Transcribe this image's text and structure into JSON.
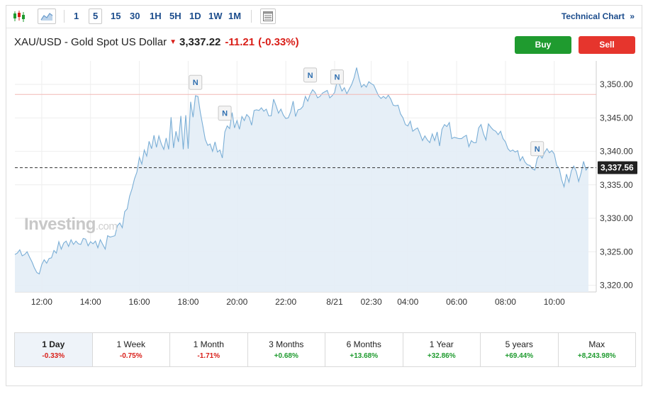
{
  "toolbar": {
    "chart_type_icons": [
      "candlestick-icon",
      "area-chart-icon"
    ],
    "timeframes": [
      "1",
      "5",
      "15",
      "30",
      "1H",
      "5H",
      "1D",
      "1W",
      "1M"
    ],
    "active_timeframe": "5",
    "layout_icon": "table-layout-icon",
    "technical_chart_label": "Technical Chart",
    "technical_chart_arrow": "»"
  },
  "quote": {
    "symbol_name": "XAU/USD - Gold Spot US Dollar",
    "direction_icon": "down-arrow-icon",
    "price": "3,337.22",
    "change": "-11.21",
    "change_pct": "(-0.33%)"
  },
  "actions": {
    "buy_label": "Buy",
    "sell_label": "Sell"
  },
  "watermark": {
    "brand": "Investing",
    "suffix": ".com"
  },
  "colors": {
    "line": "#7aaed6",
    "area": "#e3edf6",
    "down": "#d91e18",
    "up": "#1f9b2f",
    "buy": "#1f9b2f",
    "sell": "#e6352d",
    "link": "#1b4c8c"
  },
  "chart_data": {
    "type": "area",
    "y_ticks": [
      "3,320.00",
      "3,325.00",
      "3,330.00",
      "3,335.00",
      "3,340.00",
      "3,345.00",
      "3,350.00"
    ],
    "x_tick_labels": [
      "12:00",
      "14:00",
      "16:00",
      "18:00",
      "20:00",
      "22:00",
      "8/21",
      "02:30",
      "04:00",
      "06:00",
      "08:00",
      "10:00"
    ],
    "ylim": [
      3319,
      3353.5
    ],
    "last_price_label": "3,337.56",
    "last_price": 3337.56,
    "reference_line": 3348.5,
    "news_marker_label": "N",
    "news_markers": [
      {
        "label": "N",
        "i": 74,
        "y": 3350.3
      },
      {
        "label": "N",
        "i": 86,
        "y": 3345.7
      },
      {
        "label": "N",
        "i": 121,
        "y": 3351.4
      },
      {
        "label": "N",
        "i": 132,
        "y": 3351.1
      },
      {
        "label": "N",
        "i": 214,
        "y": 3340.4
      }
    ],
    "x_ticks_index": [
      11,
      31,
      51,
      71,
      91,
      111,
      131,
      146,
      161,
      181,
      201,
      221
    ],
    "grid": true,
    "values": [
      3324.6,
      3324.8,
      3325.3,
      3324.4,
      3324.6,
      3325.0,
      3324.2,
      3323.5,
      3322.6,
      3321.9,
      3321.7,
      3323.1,
      3323.8,
      3323.3,
      3324.0,
      3324.1,
      3325.2,
      3324.8,
      3326.5,
      3325.4,
      3326.3,
      3326.6,
      3325.8,
      3326.8,
      3326.1,
      3326.6,
      3326.2,
      3326.1,
      3327.0,
      3326.9,
      3325.9,
      3326.5,
      3326.2,
      3326.6,
      3325.6,
      3326.8,
      3326.1,
      3325.4,
      3327.4,
      3327.2,
      3327.3,
      3327.4,
      3328.9,
      3329.3,
      3328.6,
      3331.0,
      3331.4,
      3333.3,
      3334.4,
      3335.9,
      3336.9,
      3339.1,
      3338.1,
      3340.2,
      3339.3,
      3341.5,
      3340.4,
      3342.4,
      3340.6,
      3342.3,
      3341.1,
      3340.3,
      3342.0,
      3340.3,
      3345.1,
      3340.5,
      3343.0,
      3341.4,
      3345.3,
      3340.3,
      3345.4,
      3340.4,
      3347.4,
      3345.1,
      3348.3,
      3348.2,
      3345.8,
      3343.8,
      3341.8,
      3340.9,
      3341.1,
      3340.0,
      3341.4,
      3339.9,
      3340.2,
      3339.0,
      3342.9,
      3343.8,
      3343.4,
      3345.8,
      3343.5,
      3344.6,
      3343.3,
      3345.2,
      3344.6,
      3345.5,
      3345.1,
      3343.9,
      3346.1,
      3346.2,
      3346.1,
      3346.5,
      3346.0,
      3346.3,
      3345.3,
      3345.3,
      3347.8,
      3346.8,
      3345.7,
      3346.3,
      3345.4,
      3344.9,
      3345.0,
      3345.9,
      3347.5,
      3345.2,
      3346.2,
      3346.3,
      3346.7,
      3348.2,
      3347.5,
      3348.5,
      3349.2,
      3348.8,
      3348.0,
      3348.2,
      3348.7,
      3348.9,
      3349.1,
      3348.0,
      3348.3,
      3348.8,
      3350.4,
      3350.0,
      3349.0,
      3349.5,
      3348.6,
      3349.3,
      3350.0,
      3351.0,
      3352.5,
      3350.9,
      3349.6,
      3350.0,
      3349.6,
      3350.4,
      3350.1,
      3349.9,
      3349.1,
      3348.3,
      3347.9,
      3348.2,
      3347.9,
      3348.4,
      3347.8,
      3346.9,
      3346.8,
      3346.9,
      3345.6,
      3345.0,
      3344.0,
      3343.8,
      3344.5,
      3343.0,
      3343.3,
      3343.5,
      3342.6,
      3341.6,
      3342.3,
      3341.7,
      3341.3,
      3342.6,
      3341.6,
      3342.9,
      3340.8,
      3343.3,
      3344.0,
      3343.7,
      3344.3,
      3341.9,
      3342.1,
      3342.0,
      3341.9,
      3341.9,
      3342.2,
      3342.4,
      3340.7,
      3341.6,
      3341.3,
      3341.3,
      3343.5,
      3344.0,
      3342.6,
      3341.7,
      3344.1,
      3343.6,
      3343.2,
      3343.0,
      3342.5,
      3343.0,
      3341.9,
      3341.4,
      3340.4,
      3340.0,
      3340.2,
      3339.9,
      3340.1,
      3338.6,
      3339.2,
      3338.4,
      3338.0,
      3337.9,
      3337.4,
      3337.2,
      3338.9,
      3339.5,
      3339.0,
      3339.8,
      3340.4,
      3339.8,
      3340.1,
      3339.6,
      3337.9,
      3337.5,
      3335.8,
      3334.7,
      3336.6,
      3335.4,
      3337.1,
      3337.8,
      3337.0,
      3335.5,
      3336.8,
      3338.5,
      3337.2,
      3337.7
    ]
  },
  "periods": [
    {
      "label": "1 Day",
      "value": "-0.33%",
      "dir": "neg",
      "active": true
    },
    {
      "label": "1 Week",
      "value": "-0.75%",
      "dir": "neg"
    },
    {
      "label": "1 Month",
      "value": "-1.71%",
      "dir": "neg"
    },
    {
      "label": "3 Months",
      "value": "+0.68%",
      "dir": "pos"
    },
    {
      "label": "6 Months",
      "value": "+13.68%",
      "dir": "pos"
    },
    {
      "label": "1 Year",
      "value": "+32.86%",
      "dir": "pos"
    },
    {
      "label": "5 years",
      "value": "+69.44%",
      "dir": "pos"
    },
    {
      "label": "Max",
      "value": "+8,243.98%",
      "dir": "pos"
    }
  ]
}
